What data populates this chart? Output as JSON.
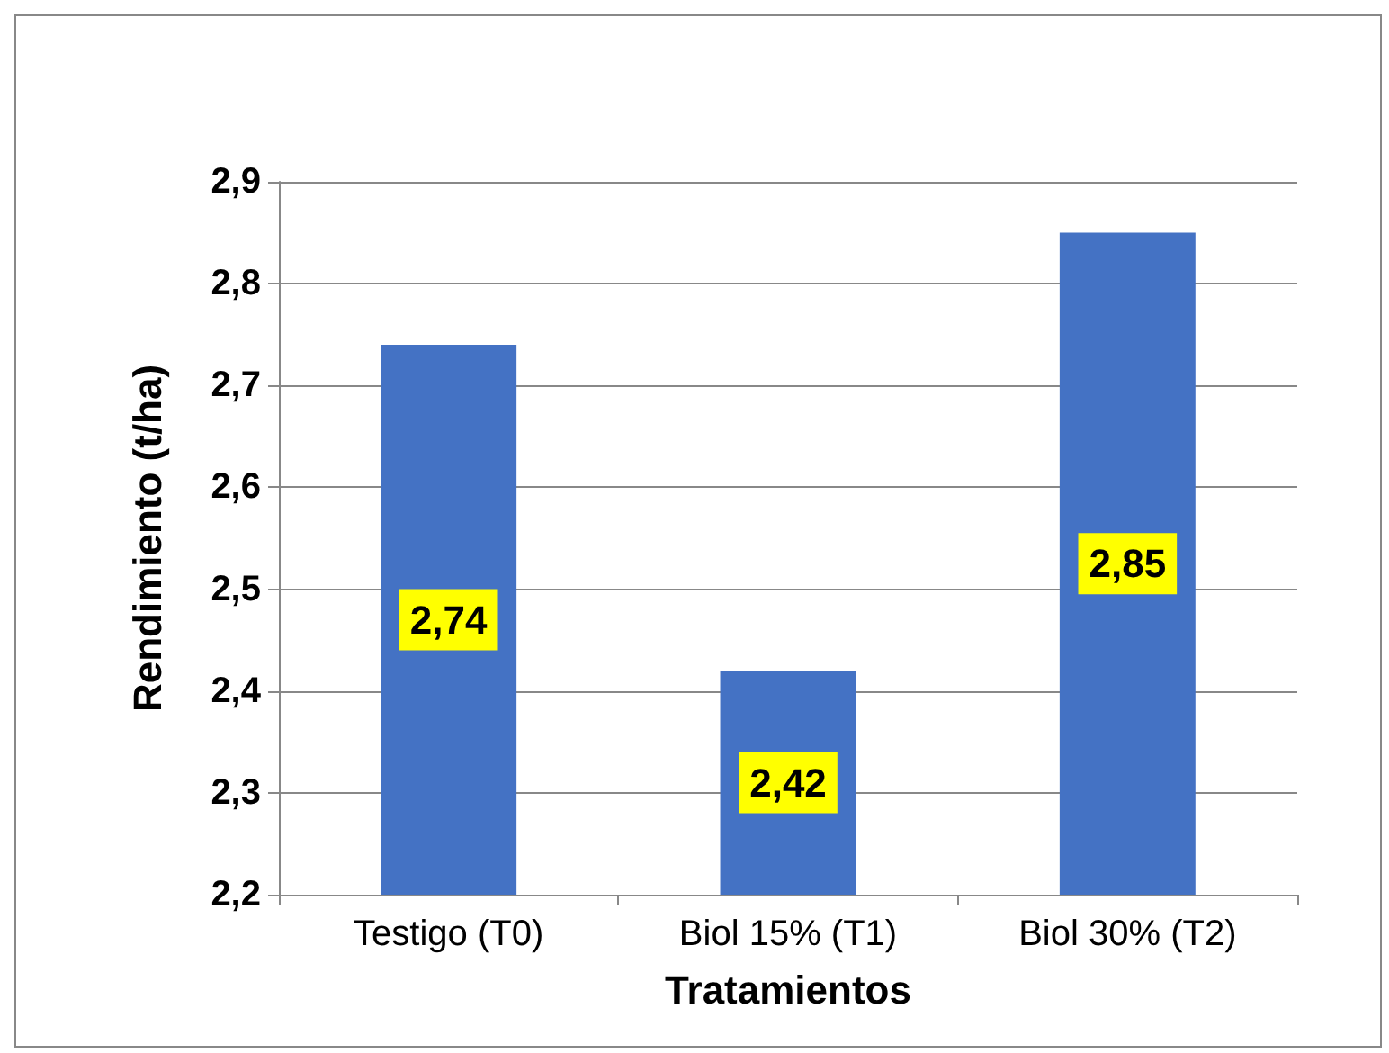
{
  "chart_data": {
    "type": "bar",
    "xlabel": "Tratamientos",
    "ylabel": "Rendimiento (t/ha)",
    "categories": [
      "Testigo (T0)",
      "Biol 15% (T1)",
      "Biol 30% (T2)"
    ],
    "values": [
      2.74,
      2.42,
      2.85
    ],
    "value_labels": [
      "2,74",
      "2,42",
      "2,85"
    ],
    "color": "#4472c4",
    "ylim": [
      2.2,
      2.9
    ],
    "yticks": [
      {
        "value": 2.2,
        "label": "2,2"
      },
      {
        "value": 2.3,
        "label": "2,3"
      },
      {
        "value": 2.4,
        "label": "2,4"
      },
      {
        "value": 2.5,
        "label": "2,5"
      },
      {
        "value": 2.6,
        "label": "2,6"
      },
      {
        "value": 2.7,
        "label": "2,7"
      },
      {
        "value": 2.8,
        "label": "2,8"
      },
      {
        "value": 2.9,
        "label": "2,9"
      }
    ],
    "grid": "y"
  }
}
